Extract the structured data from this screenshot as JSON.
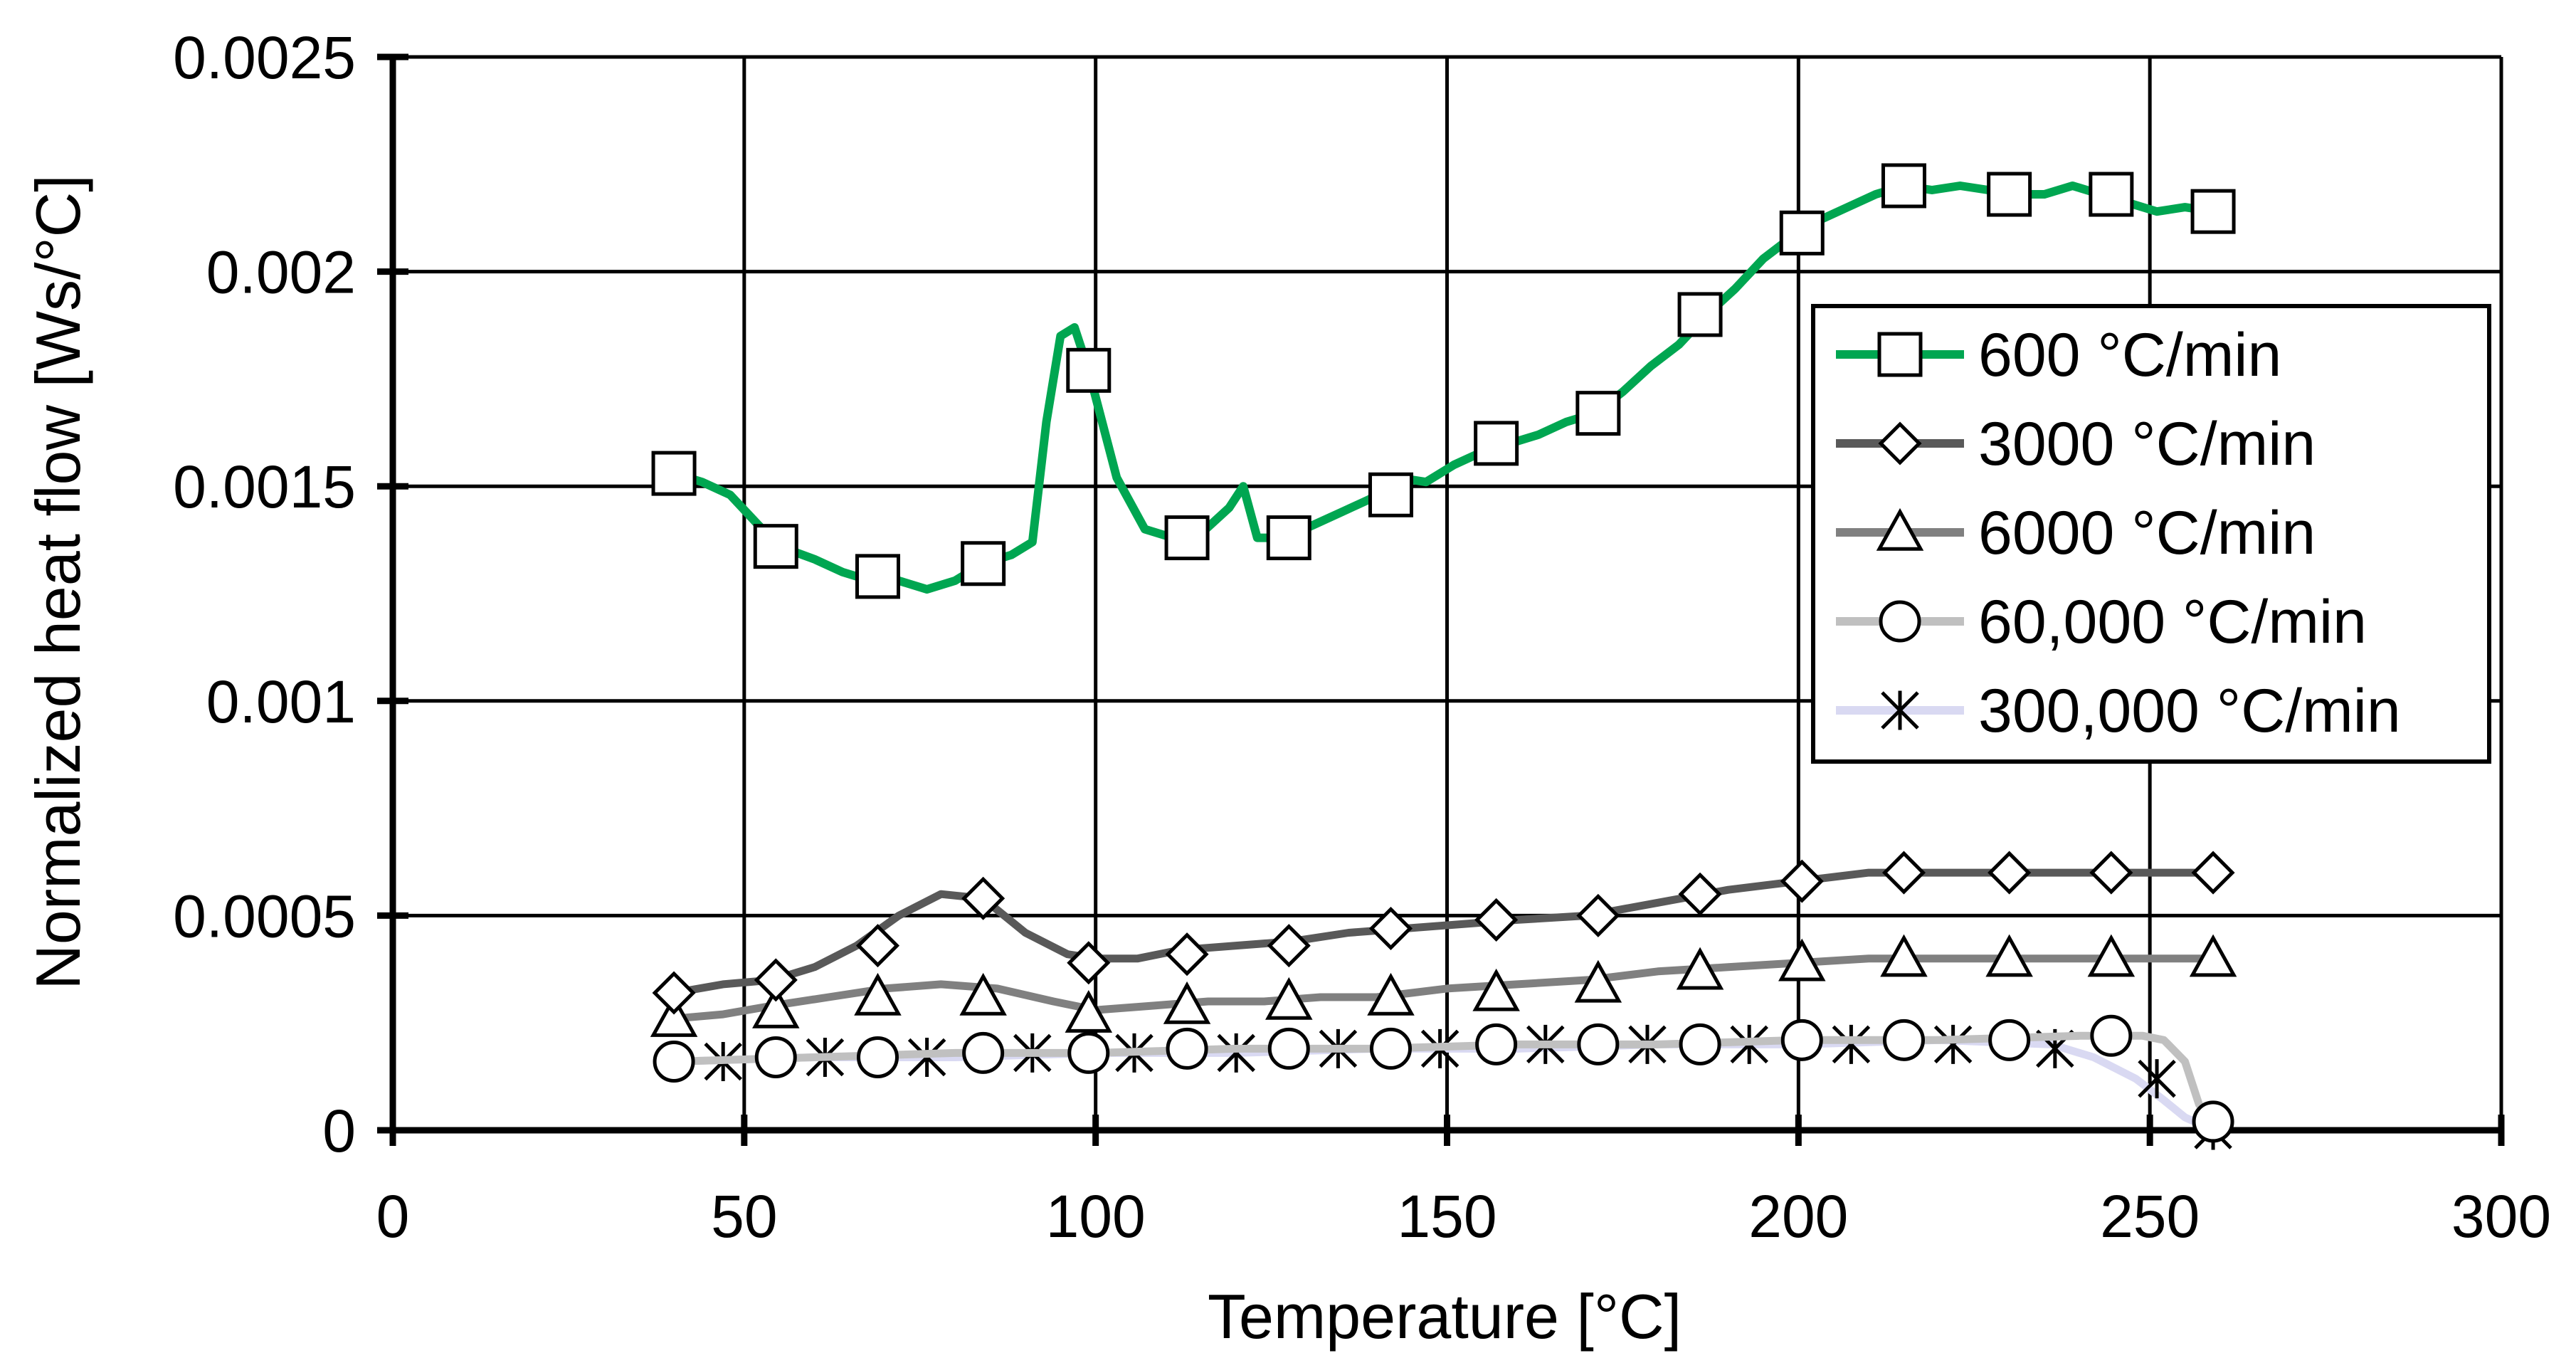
{
  "chart_data": {
    "type": "line",
    "xlabel": "Temperature   [°C]",
    "ylabel": "Normalized heat flow   [Ws/°C]",
    "xlim": [
      0,
      300
    ],
    "ylim": [
      0,
      0.0025
    ],
    "xticks": [
      0,
      50,
      100,
      150,
      200,
      250,
      300
    ],
    "xtick_labels": [
      "0",
      "50",
      "100",
      "150",
      "200",
      "250",
      "300"
    ],
    "yticks": [
      0,
      0.0005,
      0.001,
      0.0015,
      0.002,
      0.0025
    ],
    "ytick_labels": [
      "0",
      "0.0005",
      "0.001",
      "0.0015",
      "0.002",
      "0.0025"
    ],
    "grid": true,
    "legend_position": "right",
    "series": [
      {
        "name": "600 °C/min",
        "color": "#00a651",
        "marker": "square",
        "x": [
          40,
          44,
          48,
          52,
          55,
          60,
          64,
          68,
          72,
          76,
          80,
          84,
          88,
          91,
          93,
          95,
          97,
          99,
          103,
          107,
          111,
          115,
          119,
          121,
          123,
          127,
          131,
          135,
          139,
          143,
          147,
          151,
          155,
          159,
          163,
          167,
          171,
          175,
          179,
          183,
          187,
          191,
          195,
          199,
          203,
          207,
          211,
          215,
          219,
          223,
          227,
          231,
          235,
          239,
          243,
          247,
          251,
          255,
          259
        ],
        "y": [
          0.00153,
          0.00151,
          0.00148,
          0.00141,
          0.00136,
          0.00133,
          0.0013,
          0.00128,
          0.00128,
          0.00126,
          0.00128,
          0.00132,
          0.00134,
          0.00137,
          0.00165,
          0.00185,
          0.00187,
          0.00177,
          0.00152,
          0.0014,
          0.00138,
          0.00139,
          0.00145,
          0.0015,
          0.00138,
          0.00138,
          0.00141,
          0.00144,
          0.00147,
          0.00152,
          0.00151,
          0.00155,
          0.00158,
          0.0016,
          0.00162,
          0.00165,
          0.00167,
          0.00172,
          0.00178,
          0.00183,
          0.0019,
          0.00196,
          0.00203,
          0.00208,
          0.00212,
          0.00215,
          0.00218,
          0.0022,
          0.00219,
          0.0022,
          0.00219,
          0.00218,
          0.00218,
          0.0022,
          0.00218,
          0.00216,
          0.00214,
          0.00215,
          0.00214
        ],
        "marker_x": [
          40,
          54.5,
          69,
          84,
          99,
          113,
          127.5,
          142,
          157,
          171.5,
          186,
          200.5,
          215,
          230,
          244.5,
          259
        ],
        "marker_y": [
          0.00153,
          0.00136,
          0.00129,
          0.00132,
          0.00177,
          0.00138,
          0.00138,
          0.00148,
          0.0016,
          0.00167,
          0.0019,
          0.00209,
          0.0022,
          0.00218,
          0.00218,
          0.00214
        ]
      },
      {
        "name": "3000 °C/min",
        "color": "#595959",
        "marker": "diamond",
        "x": [
          40,
          47,
          54,
          60,
          66,
          72,
          78,
          84,
          90,
          96,
          100,
          106,
          112,
          120,
          128,
          136,
          144,
          152,
          160,
          170,
          180,
          190,
          200,
          210,
          220,
          230,
          240,
          250,
          259
        ],
        "y": [
          0.00032,
          0.00034,
          0.00035,
          0.00038,
          0.00043,
          0.0005,
          0.00055,
          0.00054,
          0.00046,
          0.00041,
          0.0004,
          0.0004,
          0.00042,
          0.00043,
          0.00044,
          0.00046,
          0.00047,
          0.00048,
          0.00049,
          0.0005,
          0.00053,
          0.00056,
          0.00058,
          0.0006,
          0.0006,
          0.0006,
          0.0006,
          0.0006,
          0.0006
        ],
        "marker_x": [
          40,
          54.5,
          69,
          84,
          99,
          113,
          127.5,
          142,
          157,
          171.5,
          186,
          200.5,
          215,
          230,
          244.5,
          259
        ],
        "marker_y": [
          0.00032,
          0.00035,
          0.00043,
          0.00054,
          0.00039,
          0.00041,
          0.00043,
          0.00047,
          0.00049,
          0.0005,
          0.00055,
          0.00058,
          0.0006,
          0.0006,
          0.0006,
          0.0006
        ]
      },
      {
        "name": "6000 °C/min",
        "color": "#808080",
        "marker": "triangle",
        "x": [
          40,
          47,
          54,
          62,
          70,
          78,
          86,
          94,
          100,
          108,
          116,
          124,
          132,
          140,
          150,
          160,
          170,
          180,
          190,
          200,
          210,
          220,
          230,
          240,
          250,
          259
        ],
        "y": [
          0.00026,
          0.00027,
          0.00029,
          0.00031,
          0.00033,
          0.00034,
          0.00033,
          0.0003,
          0.00028,
          0.00029,
          0.0003,
          0.0003,
          0.00031,
          0.00031,
          0.00033,
          0.00034,
          0.00035,
          0.00037,
          0.00038,
          0.00039,
          0.0004,
          0.0004,
          0.0004,
          0.0004,
          0.0004,
          0.0004
        ],
        "marker_x": [
          40,
          54.5,
          69,
          84,
          99,
          113,
          127.5,
          142,
          157,
          171.5,
          186,
          200.5,
          215,
          230,
          244.5,
          259
        ],
        "marker_y": [
          0.00026,
          0.00028,
          0.00031,
          0.00031,
          0.00027,
          0.00029,
          0.0003,
          0.00031,
          0.00032,
          0.00034,
          0.00037,
          0.00039,
          0.0004,
          0.0004,
          0.0004,
          0.0004
        ]
      },
      {
        "name": "60,000 °C/min",
        "color": "#c0c0c0",
        "marker": "circle",
        "x": [
          40,
          60,
          80,
          100,
          120,
          140,
          160,
          180,
          200,
          220,
          240,
          249,
          252,
          255,
          257,
          259
        ],
        "y": [
          0.00016,
          0.00017,
          0.00018,
          0.00018,
          0.00019,
          0.00019,
          0.0002,
          0.0002,
          0.00021,
          0.00021,
          0.00022,
          0.00022,
          0.00021,
          0.00016,
          6e-05,
          2e-05
        ],
        "marker_x": [
          40,
          54.5,
          69,
          84,
          99,
          113,
          127.5,
          142,
          157,
          171.5,
          186,
          200.5,
          215,
          230,
          244.5,
          259
        ],
        "marker_y": [
          0.00016,
          0.00017,
          0.00017,
          0.00018,
          0.00018,
          0.00019,
          0.00019,
          0.00019,
          0.0002,
          0.0002,
          0.0002,
          0.00021,
          0.00021,
          0.00021,
          0.00022,
          2e-05
        ]
      },
      {
        "name": "300,000 °C/min",
        "color": "#d9d9f2",
        "marker": "asterisk",
        "x": [
          40,
          60,
          80,
          100,
          120,
          140,
          160,
          180,
          200,
          220,
          236,
          242,
          248,
          252,
          255,
          259
        ],
        "y": [
          0.00016,
          0.00017,
          0.00017,
          0.00018,
          0.00018,
          0.00019,
          0.00019,
          0.0002,
          0.0002,
          0.00021,
          0.0002,
          0.00017,
          0.00012,
          7e-05,
          3e-05,
          0.0
        ],
        "marker_x": [
          47,
          61.5,
          76,
          91,
          105.5,
          120,
          134.5,
          149,
          164,
          178.5,
          193,
          207.5,
          222,
          236.5,
          251,
          259
        ],
        "marker_y": [
          0.00016,
          0.00017,
          0.00017,
          0.00018,
          0.00018,
          0.00018,
          0.00019,
          0.00019,
          0.0002,
          0.0002,
          0.0002,
          0.0002,
          0.0002,
          0.00019,
          0.00012,
          0.0
        ]
      }
    ]
  }
}
